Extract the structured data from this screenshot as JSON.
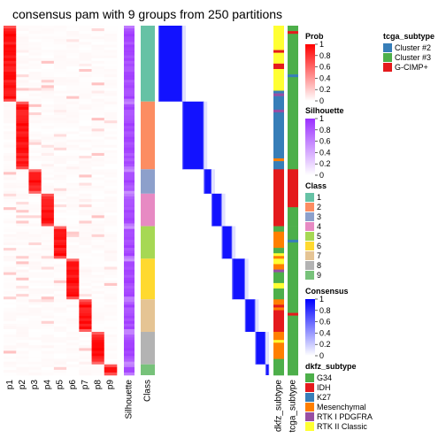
{
  "chart_data": {
    "type": "heatmap",
    "title": "consensus pam with 9 groups from 250 partitions",
    "probability_columns": [
      "p1",
      "p2",
      "p3",
      "p4",
      "p5",
      "p6",
      "p7",
      "p8",
      "p9"
    ],
    "annotation_columns": [
      "Silhouette",
      "Class"
    ],
    "side_annotations": [
      "dkfz_subtype",
      "tcga_subtype"
    ],
    "group_sizes": [
      28,
      25,
      9,
      12,
      12,
      15,
      12,
      12,
      4
    ],
    "group_order": [
      "1",
      "2",
      "3",
      "4",
      "5",
      "6",
      "7",
      "8",
      "9"
    ],
    "legends": {
      "prob": {
        "title": "Prob",
        "ticks": [
          "1",
          "0.8",
          "0.6",
          "0.4",
          "0.2",
          "0"
        ],
        "low": "#ffffff",
        "high": "#ff0000"
      },
      "silhouette": {
        "title": "Silhouette",
        "ticks": [
          "1",
          "0.8",
          "0.6",
          "0.4",
          "0.2",
          "0"
        ],
        "low": "#ffffff",
        "high": "#9b30ff"
      },
      "class": {
        "title": "Class",
        "items": [
          {
            "label": "1",
            "color": "#66C2A5"
          },
          {
            "label": "2",
            "color": "#FC8D62"
          },
          {
            "label": "3",
            "color": "#8DA0CB"
          },
          {
            "label": "4",
            "color": "#E78AC3"
          },
          {
            "label": "5",
            "color": "#A6D854"
          },
          {
            "label": "6",
            "color": "#FFD92F"
          },
          {
            "label": "7",
            "color": "#E5C494"
          },
          {
            "label": "8",
            "color": "#B3B3B3"
          },
          {
            "label": "9",
            "color": "#77C27A"
          }
        ]
      },
      "consensus": {
        "title": "Consensus",
        "ticks": [
          "1",
          "0.8",
          "0.6",
          "0.4",
          "0.2",
          "0"
        ],
        "low": "#ffffff",
        "high": "#0000ff"
      },
      "dkfz_subtype": {
        "title": "dkfz_subtype",
        "items": [
          {
            "label": "G34",
            "color": "#4DAF4A"
          },
          {
            "label": "IDH",
            "color": "#E41A1C"
          },
          {
            "label": "K27",
            "color": "#377EB8"
          },
          {
            "label": "Mesenchymal",
            "color": "#FF7F00"
          },
          {
            "label": "RTK I PDGFRA",
            "color": "#984EA3"
          },
          {
            "label": "RTK II Classic",
            "color": "#FFFF33"
          }
        ]
      },
      "tcga_subtype": {
        "title": "tcga_subtype",
        "items": [
          {
            "label": "Cluster #2",
            "color": "#377EB8"
          },
          {
            "label": "Cluster #3",
            "color": "#4DAF4A"
          },
          {
            "label": "G-CIMP+",
            "color": "#E41A1C"
          }
        ]
      }
    },
    "dkfz_blocks": [
      [
        "RTK II Classic",
        9
      ],
      [
        "IDH",
        1
      ],
      [
        "RTK II Classic",
        4
      ],
      [
        "IDH",
        2
      ],
      [
        "RTK II Classic",
        8
      ],
      [
        "K27",
        1
      ],
      [
        "RTK I PDGFRA",
        1
      ],
      [
        "K27",
        2
      ],
      [
        "K27",
        3
      ],
      [
        "RTK I PDGFRA",
        1
      ],
      [
        "K27",
        17
      ],
      [
        "Mesenchymal",
        1
      ],
      [
        "K27",
        3
      ],
      [
        "IDH",
        9
      ],
      [
        "IDH",
        12
      ],
      [
        "G34",
        2
      ],
      [
        "Mesenchymal",
        6
      ],
      [
        "G34",
        2
      ],
      [
        "RTK II Classic",
        1
      ],
      [
        "Mesenchymal",
        1
      ],
      [
        "RTK II Classic",
        2
      ],
      [
        "Mesenchymal",
        2
      ],
      [
        "RTK I PDGFRA",
        1
      ],
      [
        "G34",
        4
      ],
      [
        "RTK II Classic",
        2
      ],
      [
        "G34",
        4
      ],
      [
        "Mesenchymal",
        2
      ],
      [
        "IDH",
        1
      ],
      [
        "Mesenchymal",
        1
      ],
      [
        "IDH",
        8
      ],
      [
        "Mesenchymal",
        3
      ],
      [
        "RTK II Classic",
        1
      ],
      [
        "Mesenchymal",
        6
      ],
      [
        "G34",
        2
      ],
      [
        "G34",
        4
      ]
    ],
    "tcga_blocks": [
      [
        "Cluster #3",
        2
      ],
      [
        "G-CIMP+",
        1
      ],
      [
        "Cluster #3",
        15
      ],
      [
        "Cluster #2",
        1
      ],
      [
        "Cluster #3",
        9
      ],
      [
        "Cluster #3",
        25
      ],
      [
        "G-CIMP+",
        9
      ],
      [
        "G-CIMP+",
        5
      ],
      [
        "Cluster #3",
        7
      ],
      [
        "Cluster #3",
        5
      ],
      [
        "Cluster #2",
        1
      ],
      [
        "Cluster #3",
        6
      ],
      [
        "Cluster #3",
        15
      ],
      [
        "Cluster #3",
        5
      ],
      [
        "G-CIMP+",
        1
      ],
      [
        "Cluster #3",
        6
      ],
      [
        "Cluster #3",
        12
      ],
      [
        "Cluster #3",
        4
      ]
    ]
  }
}
